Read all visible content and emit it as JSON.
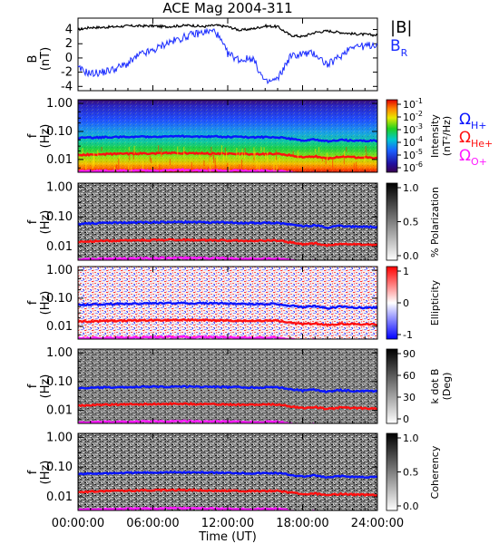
{
  "title": "ACE Mag 2004-311",
  "xlabel": "Time (UT)",
  "x_ticks": [
    "00:00:00",
    "06:00:00",
    "12:00:00",
    "18:00:00",
    "24:00:00"
  ],
  "x_range_hours": [
    0,
    24
  ],
  "colors": {
    "B_total": "#000000",
    "B_R": "#1a2cff",
    "H": "#0a16ff",
    "He": "#ff1010",
    "O": "#ff18ff"
  },
  "chart_data": [
    {
      "type": "line",
      "ylabel": "B",
      "yunit": "(nT)",
      "ylim": [
        -4.6,
        5.6
      ],
      "y_ticks": [
        "4",
        "2",
        "0",
        "-2",
        "-4"
      ],
      "y_tick_values": [
        4,
        2,
        0,
        -2,
        -4
      ],
      "x_hours": [
        0,
        1,
        2,
        3,
        4,
        5,
        6,
        7,
        8,
        9,
        10,
        11,
        12,
        13,
        14,
        15,
        16,
        17,
        18,
        19,
        20,
        21,
        22,
        23,
        24
      ],
      "series": [
        {
          "name": "|B|",
          "values": [
            4.0,
            4.3,
            4.3,
            4.4,
            4.5,
            4.5,
            4.5,
            4.4,
            4.5,
            4.6,
            4.4,
            4.6,
            4.4,
            3.9,
            4.1,
            4.5,
            4.4,
            3.2,
            3.0,
            3.6,
            3.8,
            3.6,
            3.4,
            3.3,
            3.2
          ]
        },
        {
          "name": "B_R",
          "values": [
            -1.5,
            -2.2,
            -2.0,
            -1.5,
            -0.8,
            0.5,
            1.0,
            2.0,
            2.6,
            3.2,
            3.6,
            3.8,
            0.6,
            -0.3,
            0.0,
            -3.5,
            -3.0,
            0.2,
            0.6,
            0.6,
            -1.0,
            0.2,
            1.8,
            1.6,
            2.0
          ]
        }
      ],
      "legend": [
        "|B|",
        "B",
        "R"
      ]
    },
    {
      "type": "heatmap",
      "ylabel": "f",
      "yunit": "(Hz)",
      "y_ticks": [
        "1.00",
        "0.10",
        "0.01"
      ],
      "colorbar_label": "Intensity",
      "colorbar_unit": "(nT²/Hz)",
      "colorbar_ticks": [
        "10",
        "10",
        "10",
        "10",
        "10",
        "10"
      ],
      "colorbar_exps": [
        "-1",
        "-2",
        "-3",
        "-4",
        "-5",
        "-6"
      ],
      "legend": [
        {
          "main": "Ω",
          "sub": "H+"
        },
        {
          "main": "Ω",
          "sub": "He+"
        },
        {
          "main": "Ω",
          "sub": "O+"
        }
      ]
    },
    {
      "type": "heatmap",
      "ylabel": "f",
      "yunit": "(Hz)",
      "y_ticks": [
        "1.00",
        "0.10",
        "0.01"
      ],
      "colorbar_label": "% Polarization",
      "colorbar_ticks": [
        "1.0",
        "0.5",
        "0.0"
      ]
    },
    {
      "type": "heatmap",
      "ylabel": "f",
      "yunit": "(Hz)",
      "y_ticks": [
        "1.00",
        "0.10",
        "0.01"
      ],
      "colorbar_label": "Ellipticity",
      "colorbar_ticks": [
        "1",
        "0",
        "-1"
      ]
    },
    {
      "type": "heatmap",
      "ylabel": "f",
      "yunit": "(Hz)",
      "y_ticks": [
        "1.00",
        "0.10",
        "0.01"
      ],
      "colorbar_label": "k dot B",
      "colorbar_unit": "(Deg)",
      "colorbar_ticks": [
        "90",
        "60",
        "30",
        "0"
      ]
    },
    {
      "type": "heatmap",
      "ylabel": "f",
      "yunit": "(Hz)",
      "y_ticks": [
        "1.00",
        "0.10",
        "0.01"
      ],
      "colorbar_label": "Coherency",
      "colorbar_ticks": [
        "1.0",
        "0.5",
        "0.0"
      ]
    }
  ],
  "gyro_lines_hz": {
    "x_hours": [
      0,
      2,
      4,
      6,
      8,
      10,
      12,
      14,
      16,
      17,
      18,
      19,
      20,
      21,
      22,
      24
    ],
    "H+": [
      0.058,
      0.062,
      0.064,
      0.066,
      0.067,
      0.066,
      0.064,
      0.062,
      0.063,
      0.055,
      0.048,
      0.052,
      0.044,
      0.05,
      0.047,
      0.046
    ],
    "He+": [
      0.0145,
      0.0155,
      0.016,
      0.0165,
      0.017,
      0.0165,
      0.016,
      0.0155,
      0.016,
      0.014,
      0.012,
      0.013,
      0.011,
      0.0125,
      0.012,
      0.0115
    ],
    "O+": [
      0.0037,
      0.0039,
      0.004,
      0.0041,
      0.0042,
      0.0041,
      0.004,
      0.0039,
      0.004,
      0.0035,
      0.003,
      0.0033,
      0.0028,
      0.0031,
      0.003,
      0.0029
    ]
  }
}
